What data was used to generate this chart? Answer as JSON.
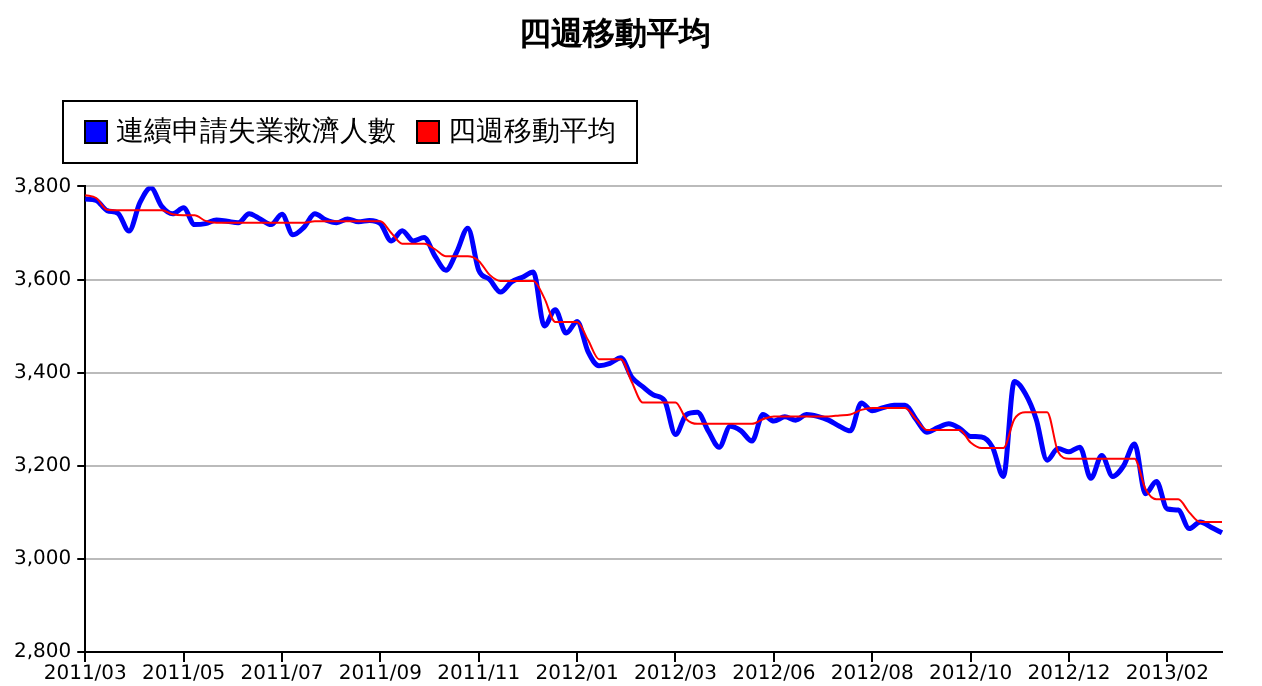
{
  "chart_data": {
    "type": "line",
    "title": "四週移動平均",
    "categories": [
      "2011/03",
      null,
      null,
      null,
      null,
      null,
      null,
      null,
      null,
      "2011/05",
      null,
      null,
      null,
      null,
      null,
      null,
      null,
      null,
      "2011/07",
      null,
      null,
      null,
      null,
      null,
      null,
      null,
      null,
      "2011/09",
      null,
      null,
      null,
      null,
      null,
      null,
      null,
      null,
      "2011/11",
      null,
      null,
      null,
      null,
      null,
      null,
      null,
      null,
      "2012/01",
      null,
      null,
      null,
      null,
      null,
      null,
      null,
      null,
      "2012/03",
      null,
      null,
      null,
      null,
      null,
      null,
      null,
      null,
      "2012/06",
      null,
      null,
      null,
      null,
      null,
      null,
      null,
      null,
      "2012/08",
      null,
      null,
      null,
      null,
      null,
      null,
      null,
      null,
      "2012/10",
      null,
      null,
      null,
      null,
      null,
      null,
      null,
      null,
      "2012/12",
      null,
      null,
      null,
      null,
      null,
      null,
      null,
      null,
      "2013/02",
      null,
      null,
      null,
      null,
      null
    ],
    "series": [
      {
        "name": "連續申請失業救濟人數",
        "color": "#0000ff",
        "values": [
          3773,
          3770,
          3748,
          3742,
          3704,
          3765,
          3797,
          3757,
          3741,
          3754,
          3718,
          3720,
          3728,
          3725,
          3722,
          3741,
          3730,
          3718,
          3740,
          3696,
          3712,
          3741,
          3728,
          3722,
          3730,
          3724,
          3727,
          3720,
          3683,
          3705,
          3683,
          3690,
          3650,
          3620,
          3660,
          3710,
          3620,
          3600,
          3573,
          3595,
          3605,
          3616,
          3500,
          3535,
          3485,
          3510,
          3445,
          3415,
          3420,
          3432,
          3390,
          3370,
          3352,
          3340,
          3267,
          3310,
          3315,
          3275,
          3240,
          3285,
          3275,
          3253,
          3310,
          3296,
          3305,
          3298,
          3310,
          3306,
          3298,
          3285,
          3275,
          3335,
          3318,
          3325,
          3330,
          3330,
          3300,
          3272,
          3282,
          3290,
          3280,
          3263,
          3262,
          3240,
          3177,
          3381,
          3355,
          3300,
          3212,
          3237,
          3230,
          3240,
          3173,
          3222,
          3177,
          3200,
          3247,
          3140,
          3166,
          3107,
          3105,
          3065,
          3079,
          3068,
          3056
        ]
      },
      {
        "name": "四週移動平均",
        "color": "#ff0000",
        "values": [
          3781,
          3775,
          3750,
          3749,
          3749,
          3749,
          3749,
          3749,
          3740,
          3738,
          3738,
          3726,
          3722,
          3722,
          3722,
          3722,
          3722,
          3722,
          3722,
          3722,
          3722,
          3725,
          3725,
          3725,
          3725,
          3725,
          3725,
          3725,
          3700,
          3677,
          3677,
          3677,
          3665,
          3650,
          3650,
          3650,
          3640,
          3610,
          3597,
          3597,
          3597,
          3597,
          3560,
          3509,
          3509,
          3509,
          3470,
          3429,
          3429,
          3429,
          3380,
          3336,
          3336,
          3336,
          3336,
          3300,
          3290,
          3290,
          3290,
          3290,
          3290,
          3290,
          3300,
          3306,
          3306,
          3306,
          3306,
          3306,
          3306,
          3308,
          3310,
          3320,
          3324,
          3324,
          3324,
          3324,
          3300,
          3277,
          3277,
          3277,
          3277,
          3250,
          3238,
          3238,
          3238,
          3300,
          3315,
          3315,
          3315,
          3230,
          3215,
          3215,
          3215,
          3215,
          3215,
          3215,
          3215,
          3150,
          3128,
          3128,
          3128,
          3100,
          3079,
          3079,
          3079
        ]
      }
    ],
    "ylim": [
      2800,
      3800
    ],
    "yticks": [
      {
        "value": 2800,
        "label": "2,800"
      },
      {
        "value": 3000,
        "label": "3,000"
      },
      {
        "value": 3200,
        "label": "3,200"
      },
      {
        "value": 3400,
        "label": "3,400"
      },
      {
        "value": 3600,
        "label": "3,600"
      },
      {
        "value": 3800,
        "label": "3,800"
      }
    ],
    "grid": "y",
    "legend": "top left",
    "marker": "none",
    "line_style": "solid"
  }
}
